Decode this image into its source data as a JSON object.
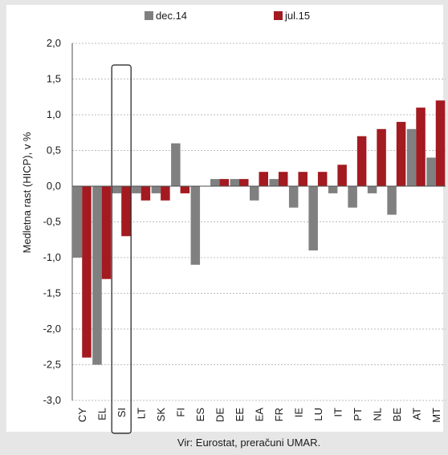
{
  "chart_data": {
    "type": "bar",
    "categories": [
      "CY",
      "EL",
      "SI",
      "LT",
      "SK",
      "FI",
      "ES",
      "DE",
      "EE",
      "EA",
      "FR",
      "IE",
      "LU",
      "IT",
      "PT",
      "NL",
      "BE",
      "AT",
      "MT"
    ],
    "series": [
      {
        "name": "dec.14",
        "color": "#808080",
        "values": [
          -1.0,
          -2.5,
          -0.1,
          -0.1,
          -0.1,
          0.6,
          -1.1,
          0.1,
          0.1,
          -0.2,
          0.1,
          -0.3,
          -0.9,
          -0.1,
          -0.3,
          -0.1,
          -0.4,
          0.8,
          0.4
        ]
      },
      {
        "name": "jul.15",
        "color": "#a31a20",
        "values": [
          -2.4,
          -1.3,
          -0.7,
          -0.2,
          -0.2,
          -0.1,
          0.0,
          0.1,
          0.1,
          0.2,
          0.2,
          0.2,
          0.2,
          0.3,
          0.7,
          0.8,
          0.9,
          1.1,
          1.2
        ]
      }
    ],
    "ylim": [
      -3.0,
      2.0
    ],
    "yticks": [
      "-3,0",
      "-2,5",
      "-2,0",
      "-1,5",
      "-1,0",
      "-0,5",
      "0,0",
      "0,5",
      "1,0",
      "1,5",
      "2,0"
    ],
    "ylabel": "Medletna rast (HICP), v %",
    "xlabel": "",
    "source": "Vir: Eurostat, preračuni UMAR.",
    "highlight": "SI",
    "grid": true,
    "legend_position": "top"
  }
}
